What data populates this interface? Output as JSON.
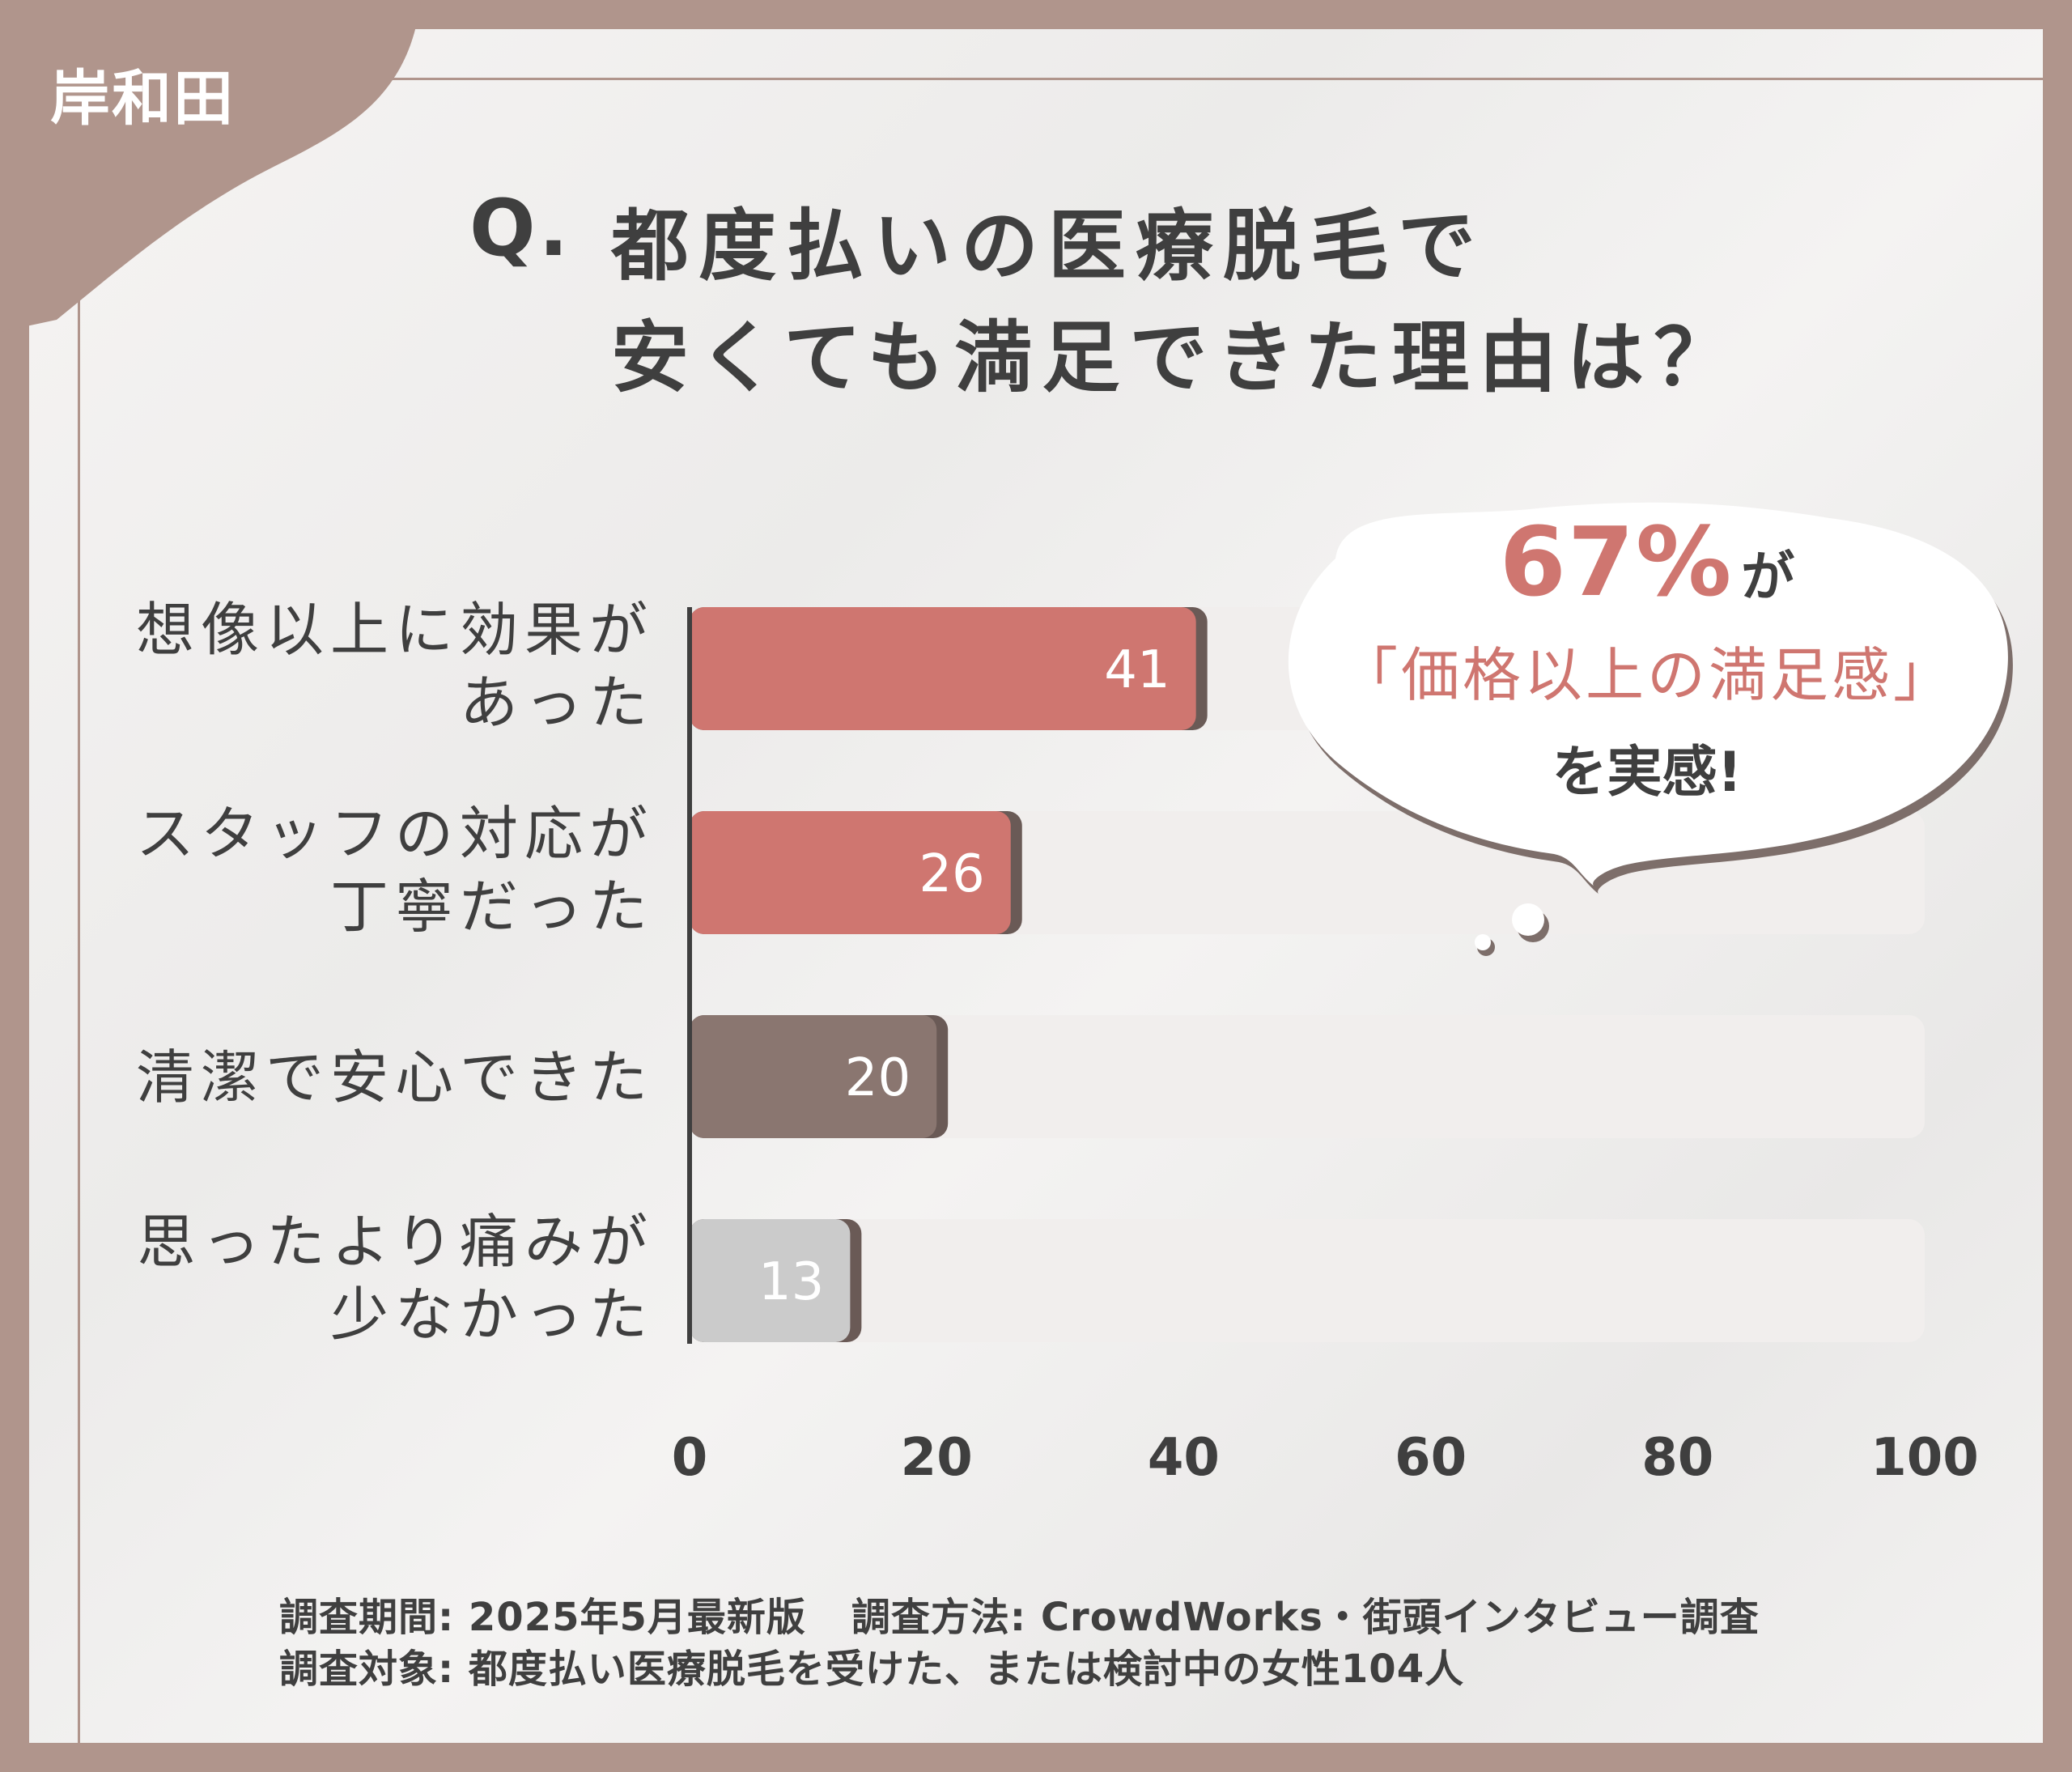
{
  "place": "岸和田",
  "title": {
    "q": "Q.",
    "line1": "都度払いの医療脱毛で",
    "line2": "安くても満足できた理由は？"
  },
  "callout": {
    "percent": "67%",
    "ga": "が",
    "quote": "「価格以上の満足感」",
    "tail": "を実感!"
  },
  "notes": {
    "period": "調査期間: 2025年5月最新版",
    "method": "調査方法: CrowdWorks・街頭インタビュー調査",
    "target": "調査対象: 都度払い医療脱毛を受けた、または検討中の女性104人"
  },
  "chart_data": {
    "type": "bar",
    "orientation": "horizontal",
    "categories": [
      [
        "想像以上に効果が",
        "あった"
      ],
      [
        "スタッフの対応が",
        "丁寧だった"
      ],
      [
        "清潔で安心できた"
      ],
      [
        "思ったより痛みが",
        "少なかった"
      ]
    ],
    "values": [
      41,
      26,
      20,
      13
    ],
    "xlim": [
      0,
      100
    ],
    "xticks": [
      "0",
      "20",
      "40",
      "60",
      "80",
      "100"
    ],
    "bar_colors": [
      "#cf7670",
      "#cf7670",
      "#8a7670",
      "#cbcbcb"
    ],
    "track_color": "#f1eeed",
    "grid": false
  }
}
